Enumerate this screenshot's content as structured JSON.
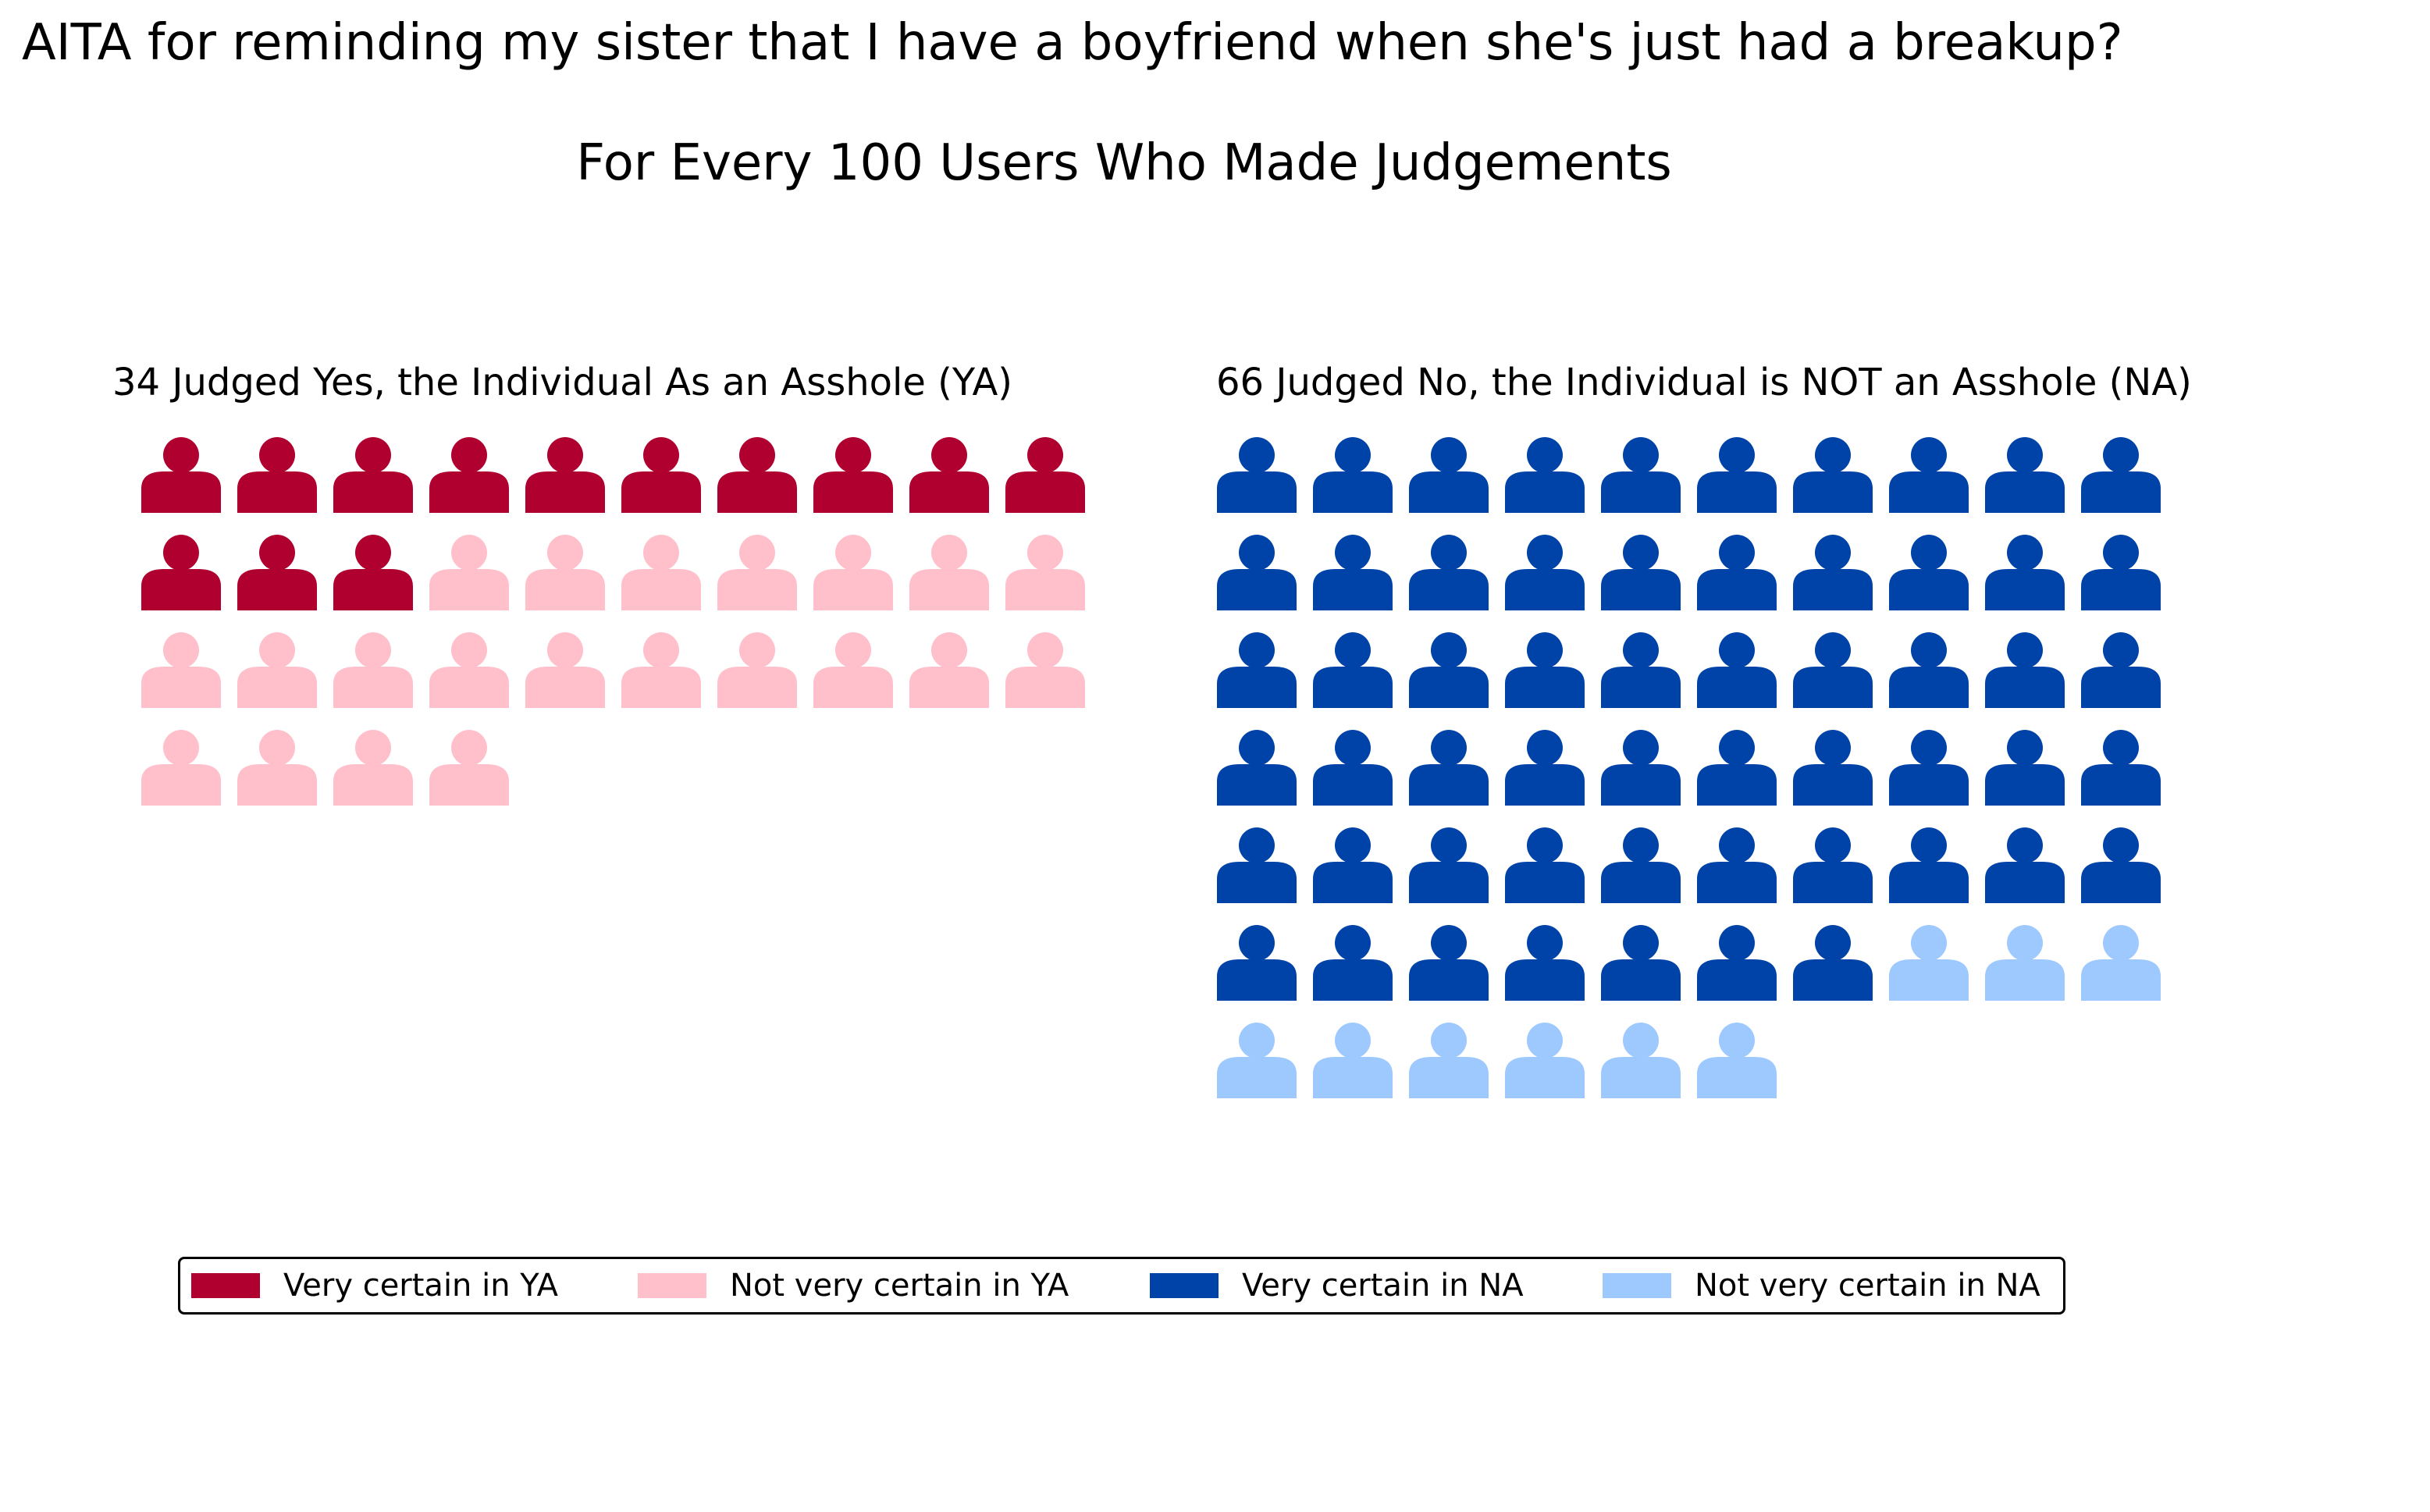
{
  "title": "AITA for reminding my sister that I have a boyfriend when she's just had a breakup?",
  "subtitle": "For Every 100 Users Who Made Judgements",
  "chart_data": {
    "type": "pictograph",
    "icon": "person-icon",
    "icons_per_row": 10,
    "panels": [
      {
        "id": "ya",
        "title": "34 Judged Yes, the Individual As an Asshole (YA)",
        "total": 34,
        "breakdown": [
          {
            "label": "Very certain in YA",
            "count": 13,
            "color": "#b00030"
          },
          {
            "label": "Not very certain in YA",
            "count": 21,
            "color": "#ffc0cb"
          }
        ]
      },
      {
        "id": "na",
        "title": "66 Judged No, the Individual is NOT an Asshole (NA)",
        "total": 66,
        "breakdown": [
          {
            "label": "Very certain in NA",
            "count": 57,
            "color": "#0043a8"
          },
          {
            "label": "Not very certain in NA",
            "count": 9,
            "color": "#9ec9ff"
          }
        ]
      }
    ],
    "legend": [
      {
        "label": "Very certain in YA",
        "color": "#b00030"
      },
      {
        "label": "Not very certain in YA",
        "color": "#ffc0cb"
      },
      {
        "label": "Very certain in NA",
        "color": "#0043a8"
      },
      {
        "label": "Not very certain in NA",
        "color": "#9ec9ff"
      }
    ],
    "legend_position": "bottom"
  }
}
